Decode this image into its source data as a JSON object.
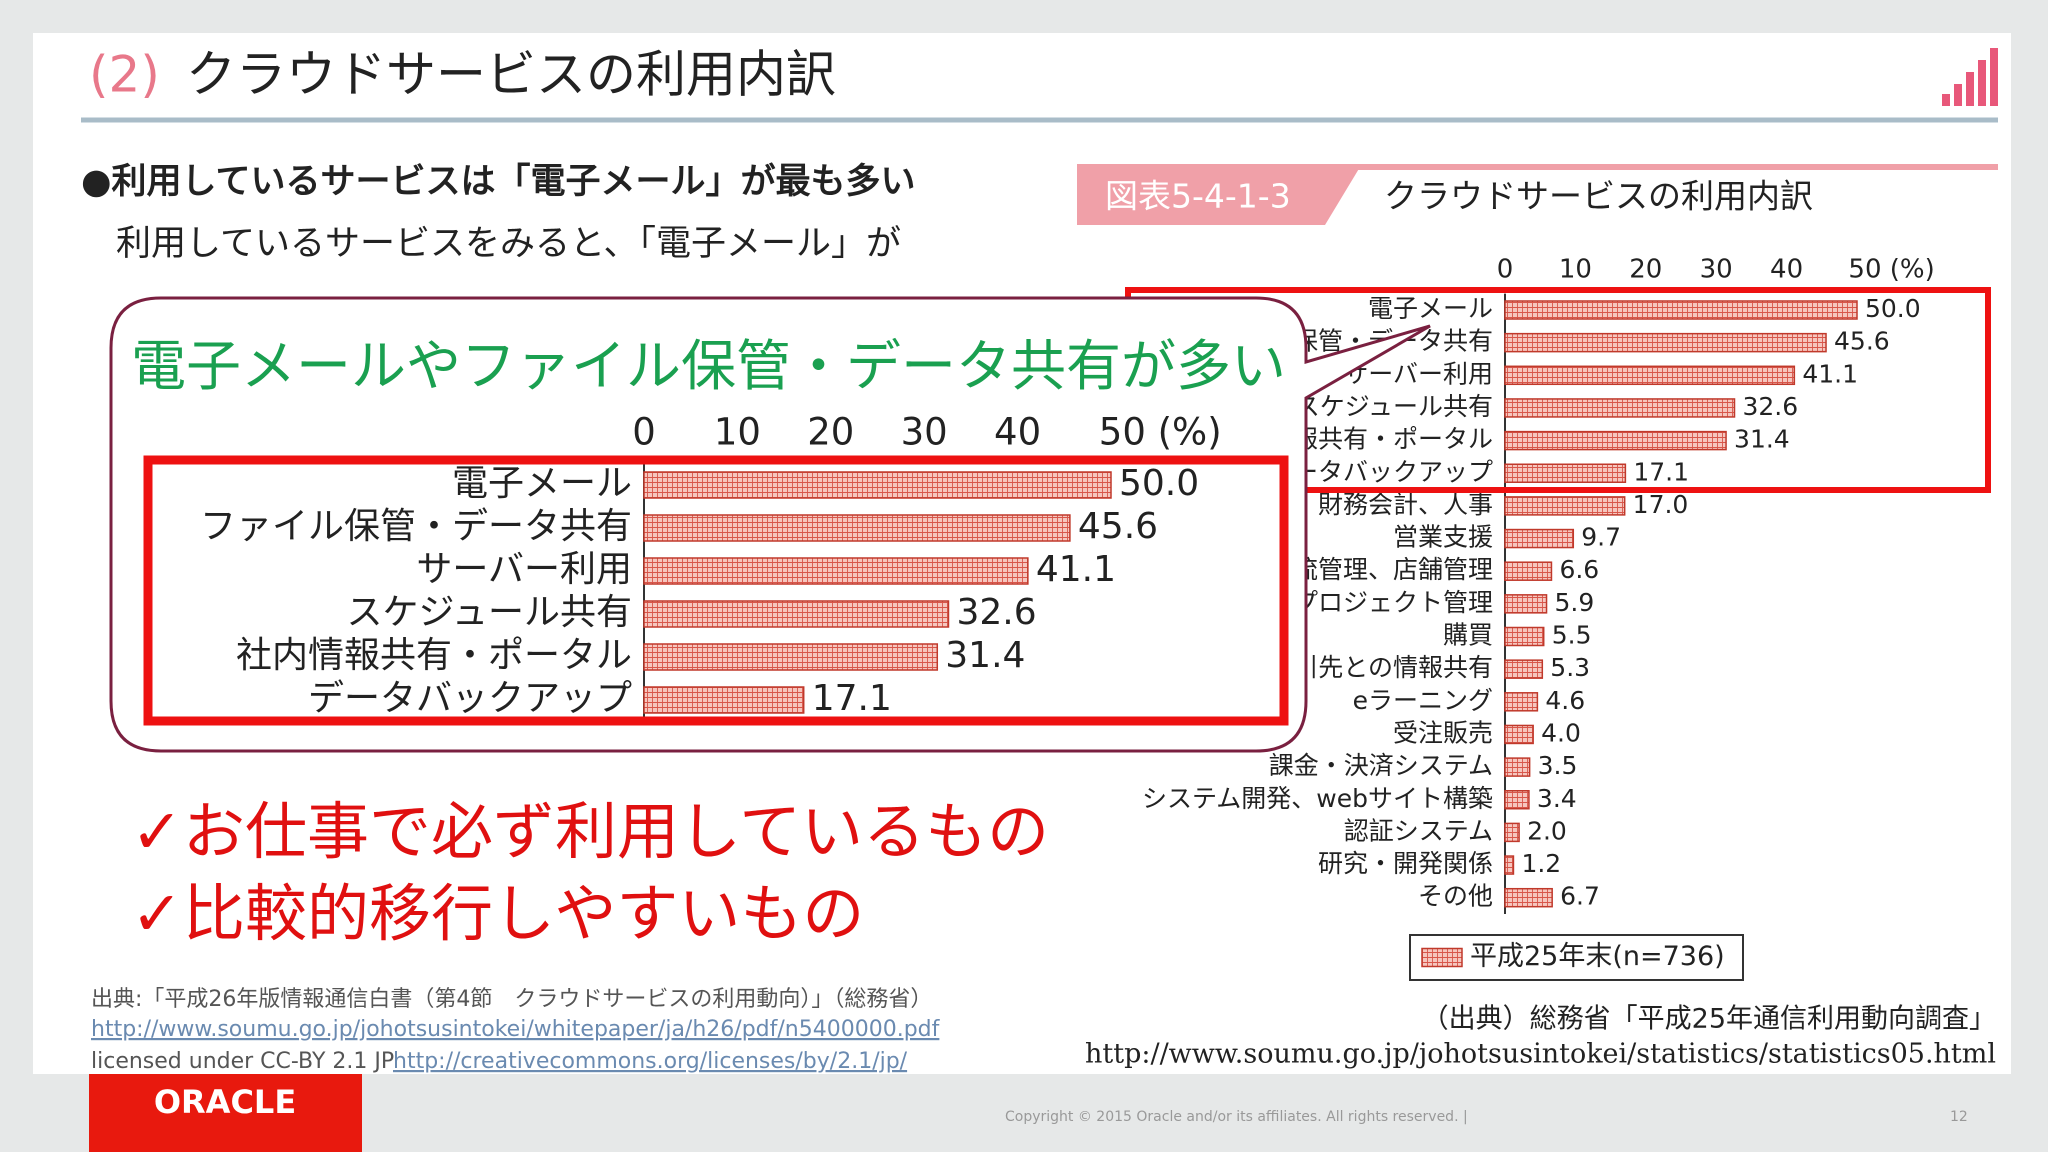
{
  "header": {
    "number": "(2)",
    "title": "クラウドサービスの利用内訳"
  },
  "body": {
    "bullet": "●利用しているサービスは「電子メール」が最も多い",
    "line": "　利用しているサービスをみると、「電子メール」が"
  },
  "figure": {
    "label": "図表5-4-1-3",
    "title": "クラウドサービスの利用内訳"
  },
  "callout": {
    "heading": "電子メールやファイル保管・データ共有が多い"
  },
  "points": [
    "✓お仕事で必ず利用しているもの",
    "✓比較的移行しやすいもの"
  ],
  "chart_data": [
    {
      "type": "bar",
      "orientation": "horizontal",
      "categories": [
        "電子メール",
        "ファイル保管・データ共有",
        "サーバー利用",
        "スケジュール共有",
        "社内情報共有・ポータル",
        "データバックアップ",
        "給与、財務会計、人事",
        "営業支援",
        "生産管理、物流管理、店舗管理",
        "プロジェクト管理",
        "購買",
        "取引先との情報共有",
        "eラーニング",
        "受注販売",
        "課金・決済システム",
        "システム開発、webサイト構築",
        "認証システム",
        "研究・開発関係",
        "その他"
      ],
      "series": [
        {
          "name": "平成25年末(n=736)",
          "color": "#f4b8ae",
          "values": [
            50.0,
            45.6,
            41.1,
            32.6,
            31.4,
            17.1,
            17.0,
            9.7,
            6.6,
            5.9,
            5.5,
            5.3,
            4.6,
            4.0,
            3.5,
            3.4,
            2.0,
            1.2,
            6.7
          ],
          "value_labels": [
            "50.0",
            "45.6",
            "41.1",
            "32.6",
            "31.4",
            "17.1",
            "17.0",
            "9.7",
            "6.6",
            "5.9",
            "5.5",
            "5.3",
            "4.6",
            "4.0",
            "3.5",
            "3.4",
            "2.0",
            "1.2",
            "6.7"
          ]
        }
      ],
      "xlim": [
        0,
        50
      ],
      "xticks": [
        0,
        10,
        20,
        30,
        40,
        {
          "value": 50,
          "label": "50 (%)"
        }
      ],
      "legend": "bottom"
    },
    {
      "type": "bar",
      "orientation": "horizontal",
      "categories": [
        "電子メール",
        "ファイル保管・データ共有",
        "サーバー利用",
        "スケジュール共有",
        "社内情報共有・ポータル",
        "データバックアップ"
      ],
      "series": [
        {
          "color": "#f4b8ae",
          "values": [
            50.0,
            45.6,
            41.1,
            32.6,
            31.4,
            17.1
          ],
          "value_labels": [
            "50.0",
            "45.6",
            "41.1",
            "32.6",
            "31.4",
            "17.1"
          ]
        }
      ],
      "xlim": [
        0,
        50
      ],
      "xticks": [
        0,
        10,
        20,
        30,
        40,
        {
          "value": 50,
          "label": "50 (%)"
        }
      ]
    }
  ],
  "source": {
    "credit": "（出典）総務省「平成25年通信利用動向調査」",
    "url": "http://www.soumu.go.jp/johotsusintokei/statistics/statistics05.html",
    "note": "出典:「平成26年版情報通信白書（第4節　クラウドサービスの利用動向）」（総務省）",
    "link": "http://www.soumu.go.jp/johotsusintokei/whitepaper/ja/h26/pdf/n5400000.pdf",
    "license": "licensed under CC-BY 2.1 JP",
    "license_url": "http://creativecommons.org/licenses/by/2.1/jp/"
  },
  "footer": {
    "logo": "ORACLE",
    "copyright": "Copyright © 2015 Oracle and/or its affiliates. All rights reserved.  |",
    "page": "12"
  }
}
